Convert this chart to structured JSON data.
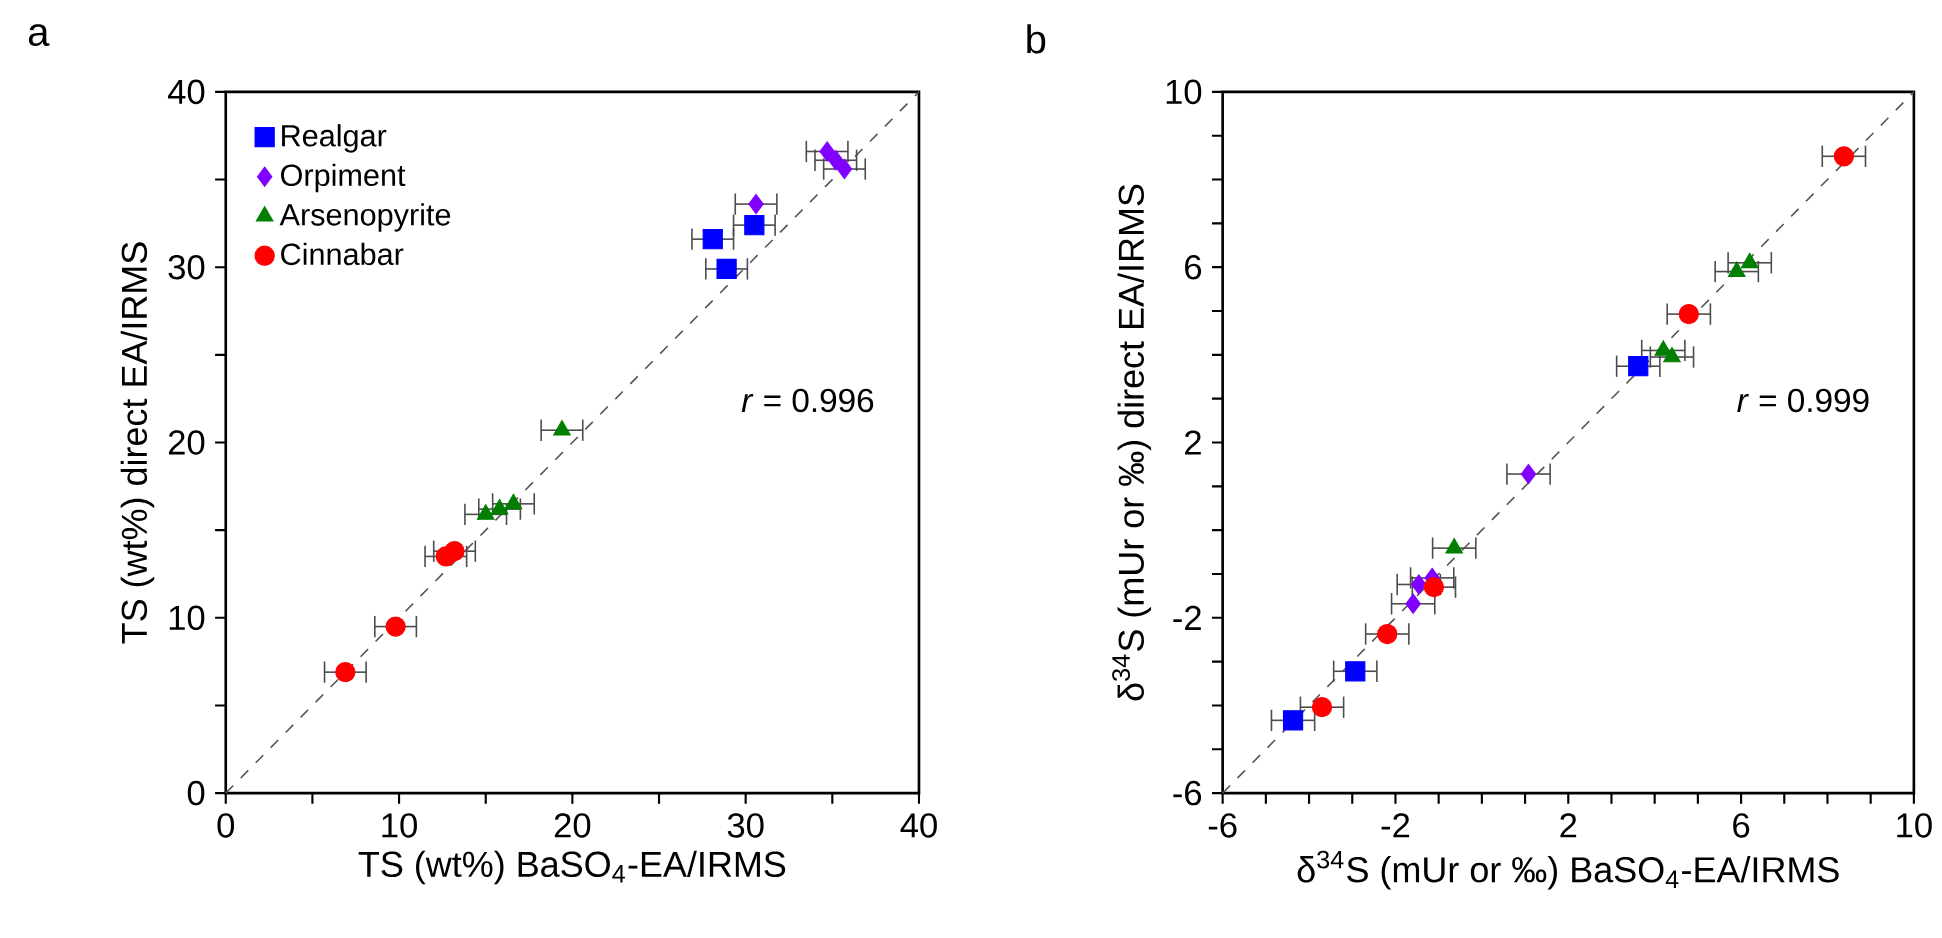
{
  "chart_data": [
    {
      "type": "scatter",
      "title": "a",
      "xlabel": "TS (wt%) BaSO$_{4}$-EA/IRMS",
      "ylabel": "TS (wt%) direct EA/IRMS",
      "xlim": [
        0,
        40
      ],
      "ylim": [
        0,
        40
      ],
      "xticks": [
        0,
        {
          "value": 5,
          "label": null
        },
        10,
        {
          "value": 15,
          "label": null
        },
        20,
        {
          "value": 25,
          "label": null
        },
        30,
        {
          "value": 35,
          "label": null
        },
        40
      ],
      "yticks": [
        0,
        {
          "value": 5,
          "label": null
        },
        10,
        {
          "value": 15,
          "label": null
        },
        20,
        {
          "value": 25,
          "label": null
        },
        30,
        {
          "value": 35,
          "label": null
        },
        40
      ],
      "legend": "top left",
      "annotations": [
        "*r* = 0.996"
      ],
      "series": [
        {
          "type": "line",
          "color": "#555555",
          "line_style": "dashed",
          "marker": "none",
          "x": [
            0,
            40
          ],
          "values": [
            0,
            40
          ]
        },
        {
          "name": "Realgar",
          "color": "#0000ff",
          "marker": "square",
          "x": [
            28.1,
            28.9,
            30.5
          ],
          "values": [
            31.6,
            29.9,
            32.4
          ],
          "xerrors": [
            1.2,
            1.2,
            1.2
          ]
        },
        {
          "name": "Orpiment",
          "color": "#8000ff",
          "marker": "diamond",
          "x": [
            30.6,
            34.7,
            35.2,
            35.7
          ],
          "values": [
            33.6,
            36.6,
            36.1,
            35.6
          ],
          "xerrors": [
            1.2,
            1.2,
            1.2,
            1.2
          ]
        },
        {
          "name": "Arsenopyrite",
          "color": "#007f00",
          "marker": "triangle",
          "x": [
            19.4,
            15.0,
            15.8,
            16.6
          ],
          "values": [
            20.7,
            15.9,
            16.2,
            16.5
          ],
          "xerrors": [
            1.2,
            1.2,
            1.2,
            1.2
          ]
        },
        {
          "name": "Cinnabar",
          "color": "#ff0000",
          "marker": "circle",
          "x": [
            6.9,
            9.8,
            12.7,
            13.2
          ],
          "values": [
            6.9,
            9.5,
            13.5,
            13.8
          ],
          "xerrors": [
            1.2,
            1.2,
            1.2,
            1.2
          ]
        }
      ]
    },
    {
      "type": "scatter",
      "title": "b",
      "xlabel": "δ$^{34}$S (mUr or ‰) BaSO$_{4}$-EA/IRMS",
      "ylabel": "δ$^{34}$S (mUr or ‰) direct EA/IRMS",
      "xlim": [
        -6,
        10
      ],
      "ylim": [
        -6,
        10
      ],
      "xticks": [
        -6,
        {
          "value": -5,
          "label": null
        },
        {
          "value": -4,
          "label": null
        },
        {
          "value": -3,
          "label": null
        },
        -2,
        {
          "value": -1,
          "label": null
        },
        {
          "value": 0,
          "label": null
        },
        {
          "value": 1,
          "label": null
        },
        2,
        {
          "value": 3,
          "label": null
        },
        {
          "value": 4,
          "label": null
        },
        {
          "value": 5,
          "label": null
        },
        6,
        {
          "value": 7,
          "label": null
        },
        {
          "value": 8,
          "label": null
        },
        {
          "value": 9,
          "label": null
        },
        10
      ],
      "yticks": [
        -6,
        {
          "value": -5,
          "label": null
        },
        {
          "value": -4,
          "label": null
        },
        {
          "value": -3,
          "label": null
        },
        -2,
        {
          "value": -1,
          "label": null
        },
        {
          "value": 0,
          "label": null
        },
        {
          "value": 1,
          "label": null
        },
        2,
        {
          "value": 3,
          "label": null
        },
        {
          "value": 4,
          "label": null
        },
        {
          "value": 5,
          "label": null
        },
        6,
        {
          "value": 7,
          "label": null
        },
        {
          "value": 8,
          "label": null
        },
        {
          "value": 9,
          "label": null
        },
        10
      ],
      "annotations": [
        "*r* = 0.999"
      ],
      "series": [
        {
          "type": "line",
          "color": "#555555",
          "line_style": "dashed",
          "marker": "none",
          "x": [
            -6,
            10
          ],
          "values": [
            -6,
            10
          ]
        },
        {
          "color": "#0000ff",
          "marker": "square",
          "x": [
            3.62,
            -2.93,
            -4.37
          ],
          "values": [
            3.74,
            -3.22,
            -4.34
          ],
          "xerrors": [
            0.5,
            0.5,
            0.5
          ]
        },
        {
          "color": "#8000ff",
          "marker": "diamond",
          "x": [
            1.08,
            -1.15,
            -1.46,
            -1.59
          ],
          "values": [
            1.28,
            -1.09,
            -1.24,
            -1.68
          ],
          "xerrors": [
            0.5,
            0.5,
            0.5,
            0.5
          ]
        },
        {
          "color": "#007f00",
          "marker": "triangle",
          "x": [
            5.9,
            6.2,
            4.2,
            4.4,
            -0.64
          ],
          "values": [
            5.9,
            6.1,
            4.1,
            3.95,
            -0.41
          ],
          "xerrors": [
            0.5,
            0.5,
            0.5,
            0.5,
            0.5
          ]
        },
        {
          "color": "#ff0000",
          "marker": "circle",
          "x": [
            8.38,
            4.79,
            -1.11,
            -2.19,
            -3.7
          ],
          "values": [
            8.53,
            4.93,
            -1.3,
            -2.37,
            -4.04
          ],
          "xerrors": [
            0.5,
            0.5,
            0.5,
            0.5,
            0.5
          ]
        }
      ]
    }
  ]
}
